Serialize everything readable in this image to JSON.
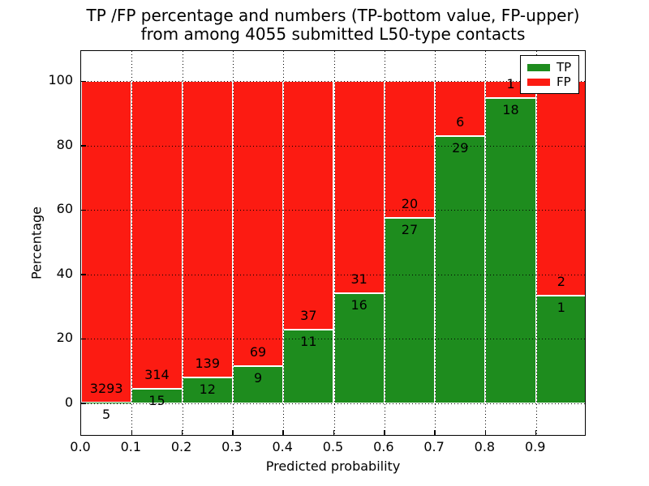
{
  "chart_data": {
    "type": "bar",
    "stacked": true,
    "normalized_to_percent": 100,
    "title_line1": "TP /FP percentage and numbers (TP-bottom value, FP-upper)",
    "title_line2": "from among 4055 submitted L50-type contacts",
    "xlabel": "Predicted probability",
    "ylabel": "Percentage",
    "categories": [
      "0.0-0.1",
      "0.1-0.2",
      "0.2-0.3",
      "0.3-0.4",
      "0.4-0.5",
      "0.5-0.6",
      "0.6-0.7",
      "0.7-0.8",
      "0.8-0.9",
      "0.9-1.0"
    ],
    "bin_edges": [
      0.0,
      0.1,
      0.2,
      0.3,
      0.4,
      0.5,
      0.6,
      0.7,
      0.8,
      0.9,
      1.0
    ],
    "series": [
      {
        "name": "TP",
        "color": "#1e8c1e",
        "counts": [
          5,
          15,
          12,
          9,
          11,
          16,
          27,
          29,
          18,
          1
        ]
      },
      {
        "name": "FP",
        "color": "#fc1b12",
        "counts": [
          3293,
          314,
          139,
          69,
          37,
          31,
          20,
          6,
          1,
          2
        ]
      }
    ],
    "tp_percentages_approx": [
      0.2,
      4.6,
      7.9,
      11.5,
      22.9,
      34.0,
      57.4,
      82.9,
      94.7,
      33.3
    ],
    "y_ticks": [
      0,
      20,
      40,
      60,
      80,
      100
    ],
    "x_ticks": [
      {
        "label": "0.0",
        "value": 0.0
      },
      {
        "label": "0.1",
        "value": 0.1
      },
      {
        "label": "0.2",
        "value": 0.2
      },
      {
        "label": "0.3",
        "value": 0.3
      },
      {
        "label": "0.4",
        "value": 0.4
      },
      {
        "label": "0.5",
        "value": 0.5
      },
      {
        "label": "0.6",
        "value": 0.6
      },
      {
        "label": "0.7",
        "value": 0.7
      },
      {
        "label": "0.8",
        "value": 0.8
      },
      {
        "label": "0.9",
        "value": 0.9
      }
    ],
    "xlim": [
      0.0,
      1.0
    ],
    "ylim": [
      -10.4,
      109.4
    ],
    "grid": "dotted",
    "legend_position": "upper right"
  }
}
